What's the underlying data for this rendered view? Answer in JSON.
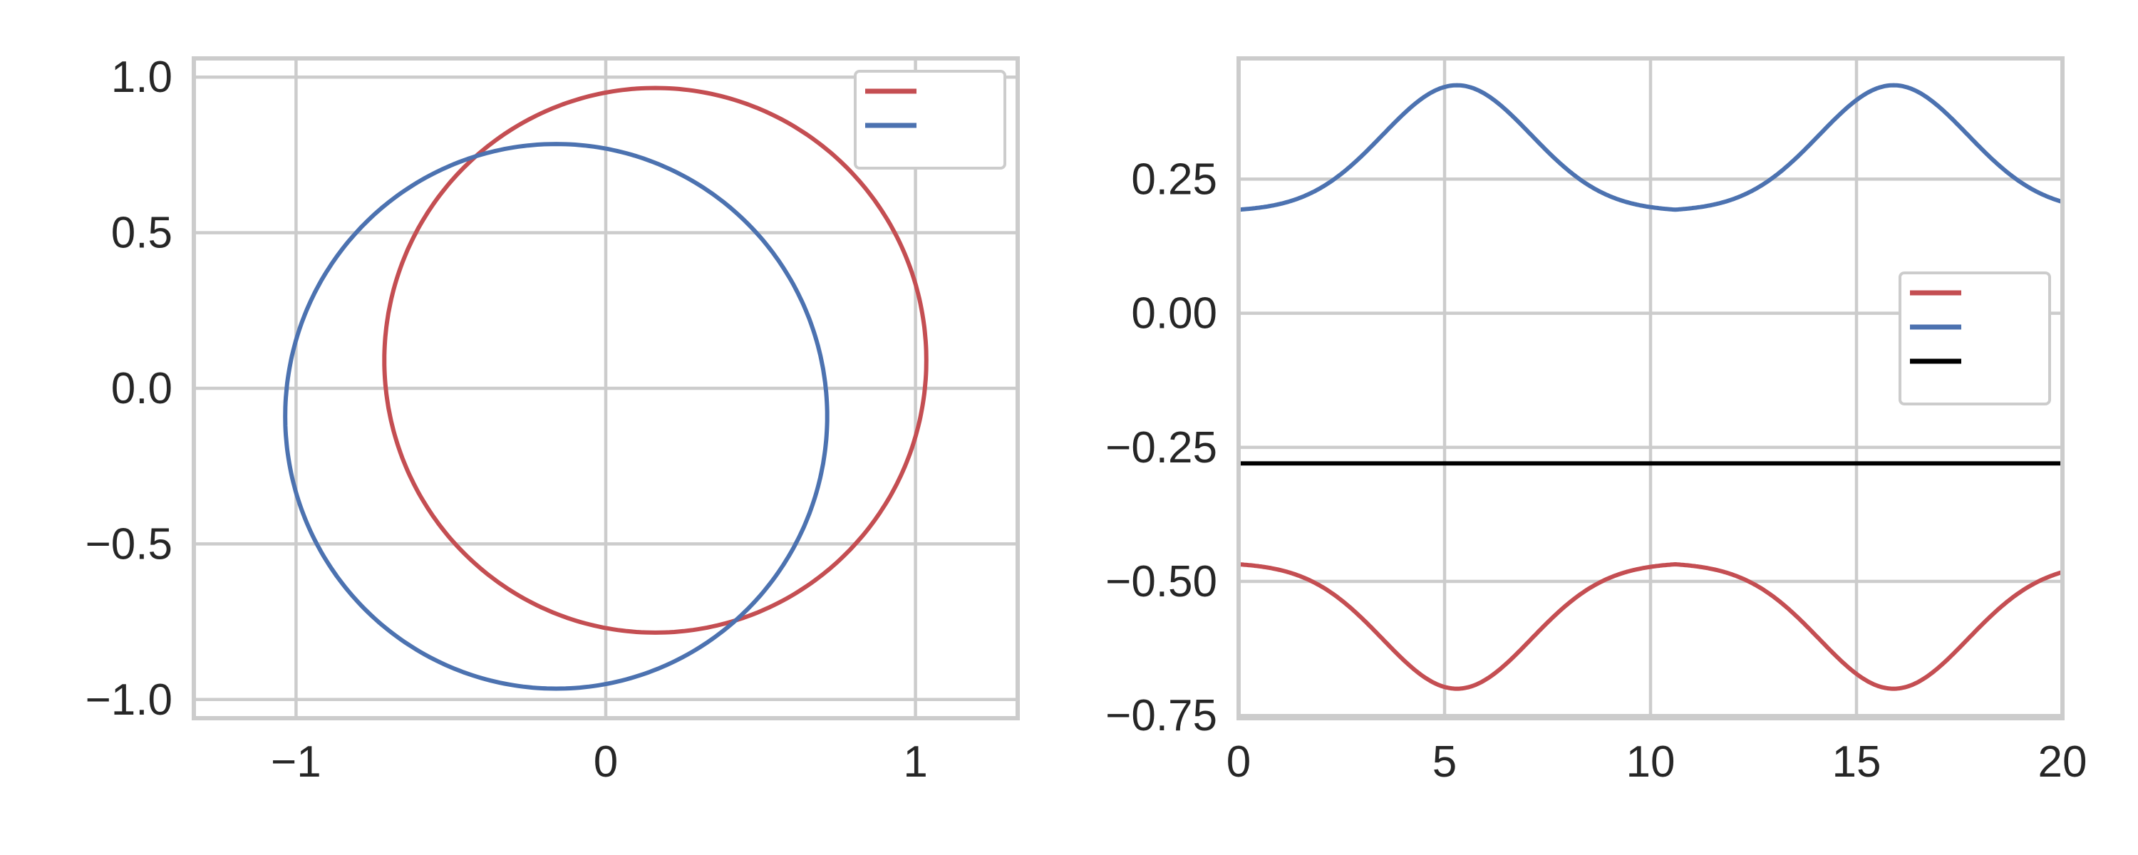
{
  "chart_data": [
    {
      "type": "line",
      "title": "",
      "xlabel": "",
      "ylabel": "",
      "xlim": [
        -1.33,
        1.33
      ],
      "ylim": [
        -1.06,
        1.06
      ],
      "xticks": [
        -1,
        0,
        1
      ],
      "xtick_labels": [
        "−1",
        "0",
        "1"
      ],
      "yticks": [
        1.0,
        0.5,
        0.0,
        -0.5,
        -1.0
      ],
      "ytick_labels": [
        "1.0",
        "0.5",
        "0.0",
        "−0.5",
        "−1.0"
      ],
      "grid": true,
      "aspect": "equal",
      "legend": {
        "placement": "upper right",
        "labels_visible": false
      },
      "series": [
        {
          "color": "#c44e52",
          "shape": "circle",
          "center": [
            0.16,
            0.09
          ],
          "radius": 0.875
        },
        {
          "color": "#4c72b0",
          "shape": "circle",
          "center": [
            -0.16,
            -0.09
          ],
          "radius": 0.875
        }
      ]
    },
    {
      "type": "line",
      "title": "",
      "xlabel": "",
      "ylabel": "",
      "xlim": [
        0,
        20
      ],
      "ylim": [
        -0.755,
        0.475
      ],
      "xticks": [
        0,
        5,
        10,
        15,
        20
      ],
      "xtick_labels": [
        "0",
        "5",
        "10",
        "15",
        "20"
      ],
      "yticks": [
        0.25,
        0.0,
        -0.25,
        -0.5,
        -0.75
      ],
      "ytick_labels": [
        "0.25",
        "0.00",
        "−0.25",
        "−0.50",
        "−0.75"
      ],
      "grid": true,
      "legend": {
        "placement": "center right",
        "labels_visible": false
      },
      "series": [
        {
          "color": "#c44e52",
          "x_range": [
            0,
            20
          ],
          "period": 10.6,
          "trough_x": 5.3,
          "max": -0.465,
          "min": -0.7,
          "hold": -0.465
        },
        {
          "color": "#4c72b0",
          "x_range": [
            0,
            20
          ],
          "period": 10.6,
          "peak_x": 5.3,
          "max": 0.425,
          "min": 0.19,
          "hold": 0.19
        },
        {
          "color": "#000000",
          "x_range": [
            0,
            20
          ],
          "constant": -0.28
        }
      ]
    }
  ]
}
